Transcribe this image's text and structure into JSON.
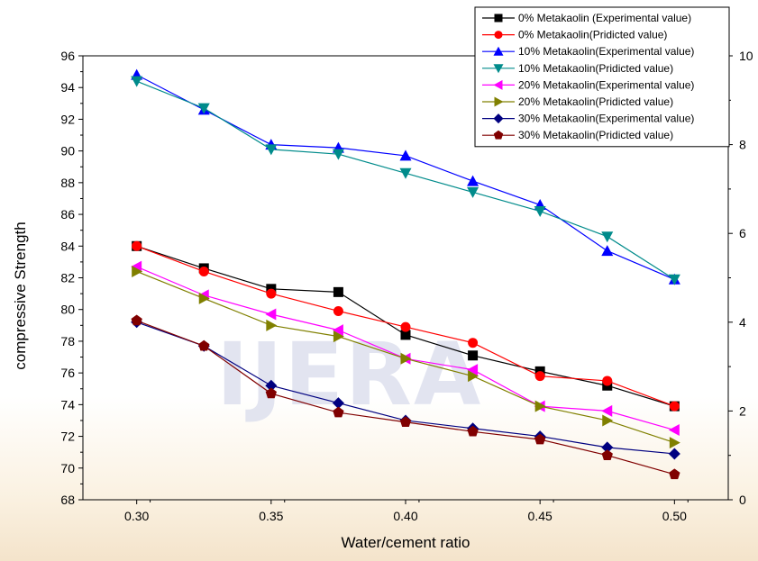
{
  "watermark": "IJERA",
  "chart_data": {
    "type": "line",
    "title": "",
    "xlabel": "Water/cement ratio",
    "ylabel": "compressive Strength",
    "x": [
      0.3,
      0.325,
      0.35,
      0.375,
      0.4,
      0.425,
      0.45,
      0.475,
      0.5
    ],
    "xlim": [
      0.28,
      0.52
    ],
    "ylim": [
      68,
      96
    ],
    "y2lim": [
      0,
      10
    ],
    "xticks": [
      "0.30",
      "0.35",
      "0.40",
      "0.45",
      "0.50"
    ],
    "yticks": [
      "68",
      "70",
      "72",
      "74",
      "76",
      "78",
      "80",
      "82",
      "84",
      "86",
      "88",
      "90",
      "92",
      "94",
      "96"
    ],
    "y2ticks": [
      "0",
      "2",
      "4",
      "6",
      "8",
      "10"
    ],
    "grid": false,
    "legend_position": "top-right",
    "series": [
      {
        "name": "0% Metakaolin (Experimental value)",
        "marker": "square",
        "color": "#000000",
        "values": [
          84.0,
          82.6,
          81.3,
          81.1,
          78.4,
          77.1,
          76.1,
          75.2,
          73.9
        ]
      },
      {
        "name": "0% Metakaolin(Pridicted value)",
        "marker": "circle",
        "color": "#ff0000",
        "values": [
          84.0,
          82.4,
          81.0,
          79.9,
          78.9,
          77.9,
          75.8,
          75.5,
          73.9
        ]
      },
      {
        "name": "10% Metakaolin(Experimental value)",
        "marker": "triangle-up",
        "color": "#0000ff",
        "values": [
          94.8,
          92.6,
          90.4,
          90.2,
          89.7,
          88.1,
          86.6,
          83.7,
          81.9
        ]
      },
      {
        "name": "10% Metakaolin(Pridicted value)",
        "marker": "triangle-down",
        "color": "#008b8b",
        "values": [
          94.4,
          92.7,
          90.1,
          89.8,
          88.6,
          87.4,
          86.2,
          84.6,
          81.9
        ]
      },
      {
        "name": "20% Metakaolin(Experimental value)",
        "marker": "triangle-left",
        "color": "#ff00ff",
        "values": [
          82.7,
          80.9,
          79.7,
          78.7,
          76.9,
          76.2,
          73.9,
          73.6,
          72.4
        ]
      },
      {
        "name": "20% Metakaolin(Pridicted  value)",
        "marker": "triangle-right",
        "color": "#808000",
        "values": [
          82.4,
          80.7,
          79.0,
          78.3,
          76.9,
          75.8,
          73.9,
          73.0,
          71.6
        ]
      },
      {
        "name": "30% Metakaolin(Experimental value)",
        "marker": "diamond",
        "color": "#000080",
        "values": [
          79.2,
          77.7,
          75.2,
          74.1,
          73.0,
          72.5,
          72.0,
          71.3,
          70.9
        ]
      },
      {
        "name": "30% Metakaolin(Pridicted value)",
        "marker": "pentagon",
        "color": "#800000",
        "values": [
          79.3,
          77.7,
          74.7,
          73.5,
          72.9,
          72.3,
          71.8,
          70.8,
          69.6
        ]
      }
    ]
  }
}
